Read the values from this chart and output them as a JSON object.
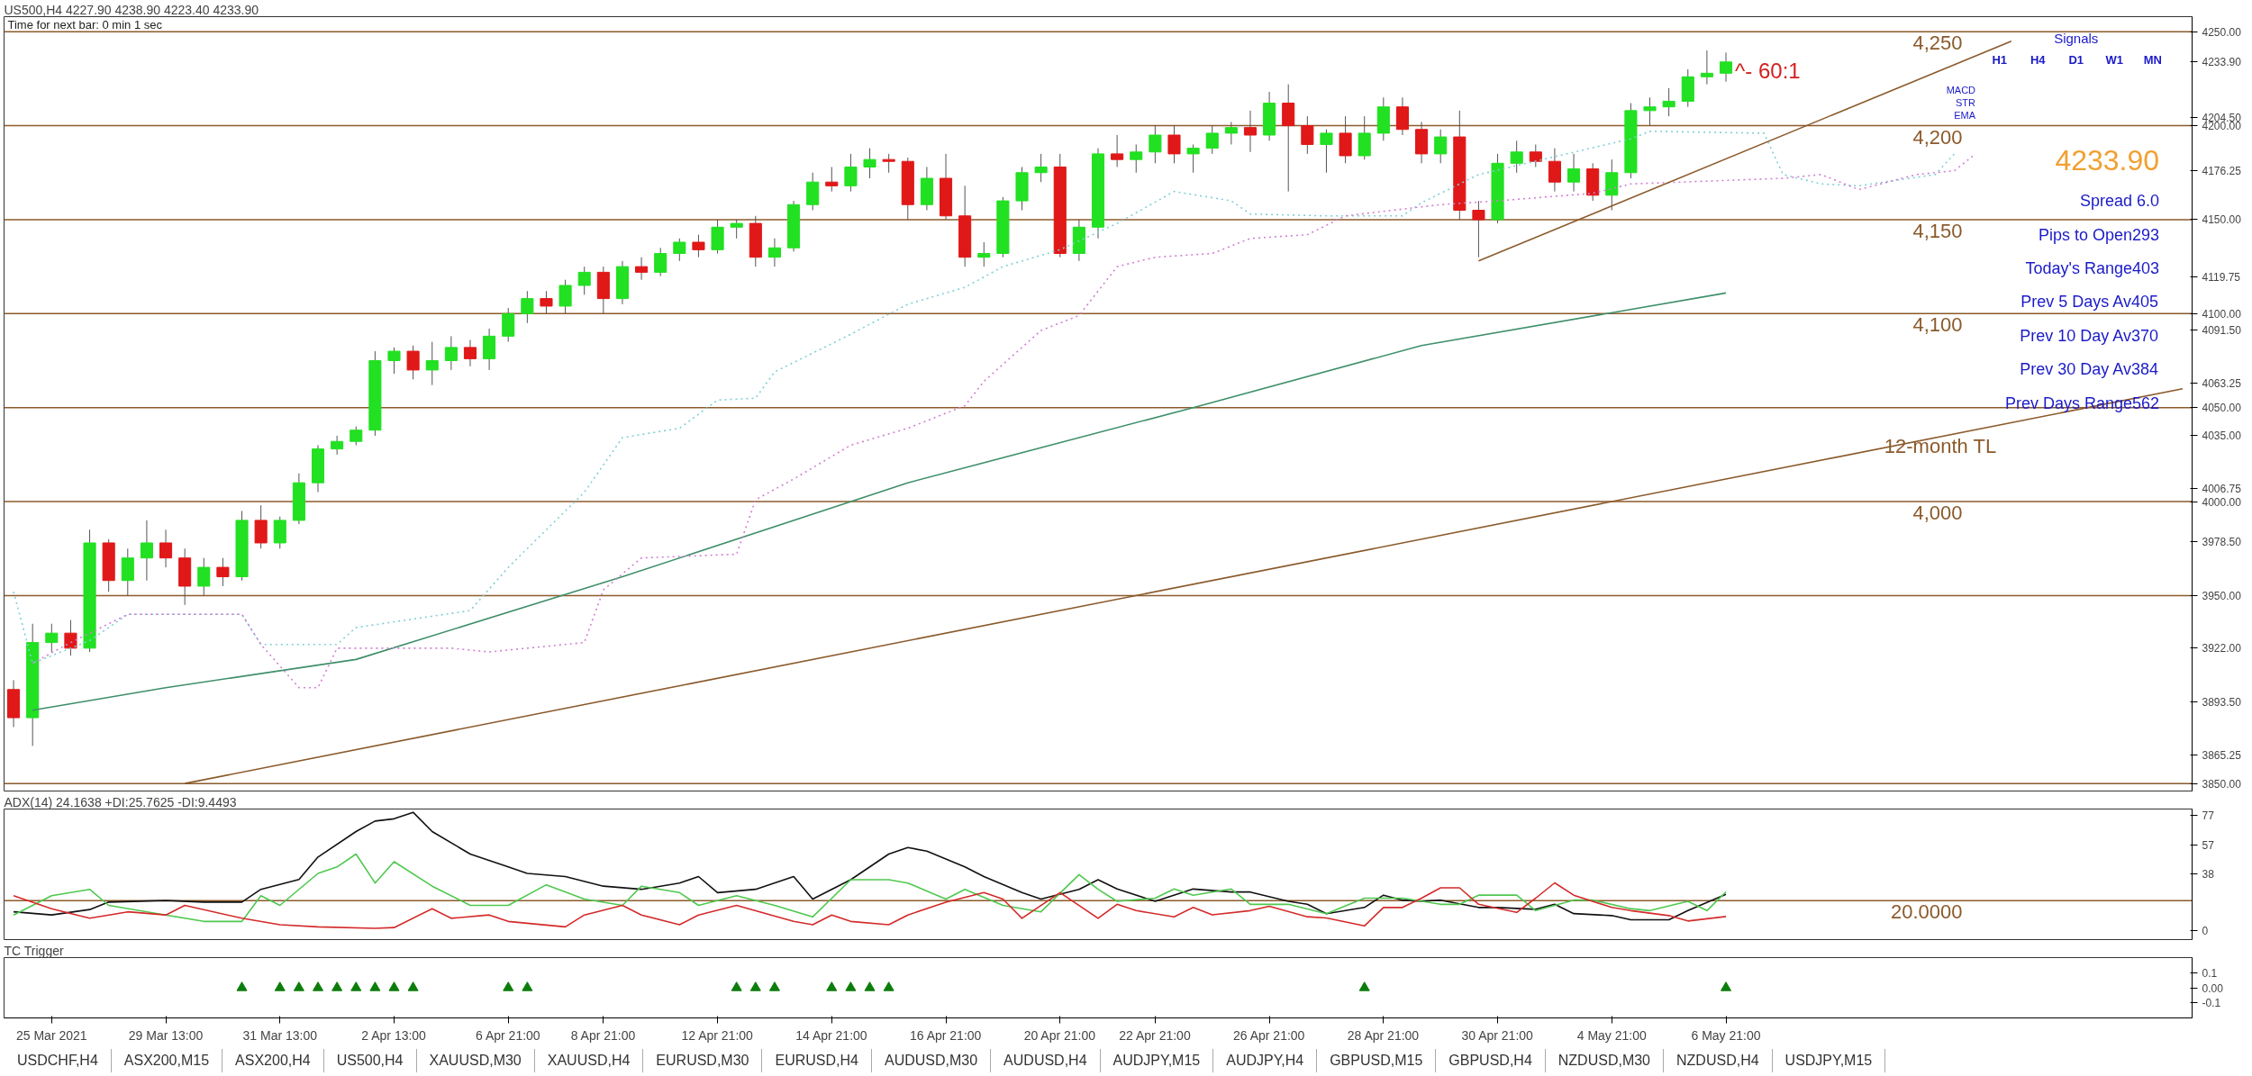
{
  "chart_data": [
    {
      "type": "candlestick",
      "title": "US500,H4  4227.90 4238.90 4223.40 4233.90",
      "subtitle": "Time for next bar: 0 min 1 sec",
      "tick_labels": "y",
      "ylim": [
        3846,
        4258
      ],
      "categories": [
        null,
        null,
        null,
        null,
        null,
        null,
        null,
        null,
        null,
        null,
        null,
        null,
        null,
        null,
        null,
        null,
        null,
        null,
        null,
        null,
        null,
        null,
        null,
        null,
        null,
        null,
        null,
        null,
        null,
        null,
        null,
        null,
        null,
        null,
        null,
        null,
        null,
        null,
        null,
        null,
        null,
        null,
        null,
        null,
        null,
        null,
        null,
        null,
        null,
        null,
        null,
        null,
        null,
        null,
        null,
        null,
        null,
        null,
        null,
        null,
        null,
        null,
        null,
        null,
        null,
        null,
        null,
        null,
        null,
        null,
        null,
        null,
        null,
        null,
        null,
        null,
        null,
        null,
        null,
        null,
        null,
        null,
        null,
        null,
        null,
        null,
        null,
        null,
        null,
        null,
        null,
        null,
        null,
        null,
        null,
        null,
        null,
        null,
        null,
        null,
        null,
        null,
        null,
        null,
        null,
        null,
        null,
        null,
        null,
        null,
        null,
        null,
        null,
        null,
        null
      ],
      "yticks": [
        {
          "value": 4250,
          "label": "4250.00"
        },
        {
          "value": 4233.9,
          "label": "4233.90"
        },
        {
          "value": 4204.5,
          "label": "4204.50"
        },
        {
          "value": 4200,
          "label": "4200.00"
        },
        {
          "value": 4176.25,
          "label": "4176.25"
        },
        {
          "value": 4150,
          "label": "4150.00"
        },
        {
          "value": 4119.75,
          "label": "4119.75"
        },
        {
          "value": 4100,
          "label": "4100.00"
        },
        {
          "value": 4091.5,
          "label": "4091.50"
        },
        {
          "value": 4063.25,
          "label": "4063.25"
        },
        {
          "value": 4050,
          "label": "4050.00"
        },
        {
          "value": 4035,
          "label": "4035.00"
        },
        {
          "value": 4006.75,
          "label": "4006.75"
        },
        {
          "value": 4000,
          "label": "4000.00"
        },
        {
          "value": 3978.5,
          "label": "3978.50"
        },
        {
          "value": 3950,
          "label": "3950.00"
        },
        {
          "value": 3922,
          "label": "3922.00"
        },
        {
          "value": 3893.5,
          "label": "3893.50"
        },
        {
          "value": 3865.25,
          "label": "3865.25"
        },
        {
          "value": 3850,
          "label": "3850.00"
        }
      ],
      "ohlc": [
        [
          3900,
          3905,
          3880,
          3885
        ],
        [
          3885,
          3935,
          3870,
          3925
        ],
        [
          3925,
          3935,
          3920,
          3930
        ],
        [
          3930,
          3937,
          3918,
          3922
        ],
        [
          3922,
          3985,
          3920,
          3978
        ],
        [
          3978,
          3980,
          3952,
          3958
        ],
        [
          3958,
          3975,
          3950,
          3970
        ],
        [
          3970,
          3990,
          3958,
          3978
        ],
        [
          3978,
          3985,
          3965,
          3970
        ],
        [
          3970,
          3975,
          3945,
          3955
        ],
        [
          3955,
          3970,
          3950,
          3965
        ],
        [
          3965,
          3970,
          3955,
          3960
        ],
        [
          3960,
          3995,
          3958,
          3990
        ],
        [
          3990,
          3998,
          3975,
          3978
        ],
        [
          3978,
          3992,
          3975,
          3990
        ],
        [
          3990,
          4015,
          3988,
          4010
        ],
        [
          4010,
          4030,
          4005,
          4028
        ],
        [
          4028,
          4035,
          4025,
          4032
        ],
        [
          4032,
          4040,
          4030,
          4038
        ],
        [
          4038,
          4080,
          4035,
          4075
        ],
        [
          4075,
          4082,
          4068,
          4080
        ],
        [
          4080,
          4083,
          4065,
          4070
        ],
        [
          4070,
          4085,
          4062,
          4075
        ],
        [
          4075,
          4088,
          4070,
          4082
        ],
        [
          4082,
          4086,
          4072,
          4076
        ],
        [
          4076,
          4092,
          4070,
          4088
        ],
        [
          4088,
          4103,
          4085,
          4100
        ],
        [
          4100,
          4112,
          4095,
          4108
        ],
        [
          4108,
          4112,
          4100,
          4104
        ],
        [
          4104,
          4118,
          4100,
          4115
        ],
        [
          4115,
          4125,
          4110,
          4122
        ],
        [
          4122,
          4125,
          4100,
          4108
        ],
        [
          4108,
          4128,
          4105,
          4125
        ],
        [
          4125,
          4130,
          4118,
          4122
        ],
        [
          4122,
          4135,
          4120,
          4132
        ],
        [
          4132,
          4140,
          4128,
          4138
        ],
        [
          4138,
          4142,
          4130,
          4134
        ],
        [
          4134,
          4150,
          4132,
          4146
        ],
        [
          4146,
          4150,
          4140,
          4148
        ],
        [
          4148,
          4152,
          4125,
          4130
        ],
        [
          4130,
          4140,
          4125,
          4135
        ],
        [
          4135,
          4160,
          4133,
          4158
        ],
        [
          4158,
          4175,
          4155,
          4170
        ],
        [
          4170,
          4178,
          4165,
          4168
        ],
        [
          4168,
          4185,
          4165,
          4178
        ],
        [
          4178,
          4188,
          4172,
          4182
        ],
        [
          4182,
          4185,
          4175,
          4181
        ],
        [
          4181,
          4183,
          4150,
          4158
        ],
        [
          4158,
          4178,
          4155,
          4172
        ],
        [
          4172,
          4185,
          4150,
          4152
        ],
        [
          4152,
          4168,
          4125,
          4130
        ],
        [
          4130,
          4138,
          4125,
          4132
        ],
        [
          4132,
          4162,
          4130,
          4160
        ],
        [
          4160,
          4178,
          4155,
          4175
        ],
        [
          4175,
          4185,
          4170,
          4178
        ],
        [
          4178,
          4185,
          4130,
          4132
        ],
        [
          4132,
          4150,
          4128,
          4146
        ],
        [
          4146,
          4188,
          4140,
          4185
        ],
        [
          4185,
          4195,
          4178,
          4182
        ],
        [
          4182,
          4190,
          4175,
          4186
        ],
        [
          4186,
          4200,
          4180,
          4195
        ],
        [
          4195,
          4200,
          4180,
          4185
        ],
        [
          4185,
          4190,
          4175,
          4188
        ],
        [
          4188,
          4200,
          4185,
          4196
        ],
        [
          4196,
          4202,
          4190,
          4199
        ],
        [
          4199,
          4208,
          4186,
          4195
        ],
        [
          4195,
          4218,
          4192,
          4212
        ],
        [
          4212,
          4222,
          4165,
          4200
        ],
        [
          4200,
          4205,
          4185,
          4190
        ],
        [
          4190,
          4198,
          4175,
          4196
        ],
        [
          4196,
          4205,
          4180,
          4184
        ],
        [
          4184,
          4205,
          4182,
          4196
        ],
        [
          4196,
          4215,
          4192,
          4210
        ],
        [
          4210,
          4215,
          4195,
          4198
        ],
        [
          4198,
          4202,
          4180,
          4185
        ],
        [
          4185,
          4198,
          4180,
          4194
        ],
        [
          4194,
          4208,
          4150,
          4155
        ],
        [
          4155,
          4160,
          4130,
          4150
        ],
        [
          4150,
          4185,
          4148,
          4180
        ],
        [
          4180,
          4192,
          4175,
          4186
        ],
        [
          4186,
          4190,
          4178,
          4181
        ],
        [
          4181,
          4188,
          4165,
          4170
        ],
        [
          4170,
          4185,
          4165,
          4177
        ],
        [
          4177,
          4180,
          4160,
          4163
        ],
        [
          4163,
          4182,
          4155,
          4175
        ],
        [
          4175,
          4212,
          4172,
          4208
        ],
        [
          4208,
          4215,
          4200,
          4210
        ],
        [
          4210,
          4220,
          4205,
          4213
        ],
        [
          4213,
          4230,
          4210,
          4226
        ],
        [
          4226,
          4240,
          4222,
          4227.9
        ],
        [
          4227.9,
          4238.9,
          4223.4,
          4233.9
        ],
        null,
        null,
        null,
        null,
        null,
        null,
        null,
        null,
        null,
        null,
        null,
        null,
        null,
        null,
        null,
        null,
        null,
        null,
        null,
        null,
        null,
        null,
        null,
        null
      ],
      "series": [
        {
          "type": "line",
          "color": "#3f8f6a",
          "values": [
            null,
            3889,
            null,
            null,
            null,
            null,
            null,
            null,
            3901,
            null,
            null,
            null,
            null,
            null,
            null,
            null,
            null,
            null,
            3916,
            null,
            null,
            null,
            null,
            null,
            null,
            null,
            null,
            null,
            null,
            null,
            null,
            null,
            3960,
            null,
            null,
            null,
            null,
            null,
            null,
            null,
            null,
            null,
            null,
            null,
            null,
            null,
            null,
            4010,
            null,
            null,
            null,
            null,
            null,
            null,
            null,
            null,
            null,
            null,
            null,
            null,
            null,
            null,
            4050,
            null,
            null,
            null,
            null,
            null,
            null,
            null,
            null,
            null,
            null,
            null,
            4083,
            null,
            null,
            null,
            null,
            null,
            null,
            null,
            null,
            null,
            null,
            null,
            null,
            null,
            null,
            null,
            4111,
            null,
            null,
            null,
            null,
            null,
            null,
            null,
            null,
            null,
            null,
            null,
            null,
            null,
            null,
            null,
            null,
            null,
            null,
            null,
            null,
            null,
            null,
            null,
            null
          ]
        },
        {
          "type": "line",
          "color": "#7fcfd6",
          "line_style": "dotted",
          "values": [
            3952,
            3914,
            null,
            null,
            3926,
            null,
            3940,
            null,
            null,
            null,
            null,
            null,
            3940,
            3924,
            null,
            null,
            null,
            3924,
            3933,
            null,
            null,
            null,
            null,
            null,
            3942,
            null,
            3965,
            null,
            null,
            null,
            4005,
            null,
            4034,
            null,
            null,
            4039,
            null,
            4054,
            null,
            4055,
            4069,
            null,
            null,
            null,
            4089,
            null,
            null,
            4105,
            null,
            null,
            4114,
            null,
            4125,
            null,
            null,
            4134,
            null,
            null,
            4148,
            null,
            null,
            4165,
            null,
            null,
            4160,
            4153,
            null,
            null,
            null,
            4152,
            null,
            null,
            null,
            4152,
            4159,
            null,
            null,
            4174,
            null,
            null,
            null,
            null,
            null,
            null,
            null,
            4193,
            4197,
            null,
            null,
            null,
            null,
            null,
            4196,
            4174,
            null,
            4169,
            null,
            4168,
            null,
            null,
            null,
            4174,
            4185,
            null,
            null,
            null,
            null,
            null,
            null,
            null,
            null,
            null,
            null,
            null,
            null
          ]
        },
        {
          "type": "line",
          "color": "#d27fd2",
          "line_style": "dotted",
          "values": [
            null,
            3914,
            null,
            3925,
            null,
            null,
            3940,
            null,
            null,
            null,
            null,
            null,
            3940,
            3924,
            null,
            3901,
            3901,
            3922,
            null,
            null,
            null,
            null,
            null,
            3922,
            null,
            3920,
            null,
            null,
            null,
            null,
            3925,
            3953,
            null,
            3970,
            null,
            null,
            null,
            null,
            3972,
            4001,
            null,
            4012,
            null,
            null,
            4030,
            null,
            null,
            4039,
            null,
            null,
            4051,
            4064,
            null,
            null,
            4091,
            null,
            4099,
            null,
            4125,
            null,
            4130,
            null,
            null,
            4132,
            null,
            4140,
            null,
            null,
            4142,
            null,
            4152,
            null,
            null,
            null,
            null,
            4158,
            null,
            null,
            4160,
            null,
            null,
            null,
            null,
            4164,
            null,
            4169,
            null,
            null,
            null,
            null,
            null,
            null,
            null,
            4172,
            null,
            4174,
            null,
            4166,
            null,
            null,
            4174,
            null,
            4176,
            4184,
            null,
            null,
            null,
            null,
            null,
            null,
            null,
            null,
            null,
            null,
            null
          ]
        },
        {
          "type": "line",
          "color": "#8b5a2b",
          "values": [
            null,
            null,
            null,
            null,
            null,
            null,
            null,
            null,
            null,
            3850,
            null,
            null,
            null,
            null,
            null,
            null,
            null,
            null,
            null,
            null,
            null,
            null,
            null,
            null,
            null,
            null,
            null,
            null,
            null,
            null,
            null,
            null,
            null,
            null,
            null,
            null,
            null,
            null,
            null,
            null,
            null,
            null,
            null,
            null,
            null,
            null,
            null,
            null,
            null,
            null,
            null,
            null,
            null,
            null,
            null,
            null,
            null,
            null,
            null,
            null,
            null,
            null,
            null,
            null,
            null,
            null,
            null,
            null,
            null,
            null,
            null,
            null,
            null,
            null,
            null,
            null,
            null,
            null,
            null,
            null,
            null,
            null,
            null,
            null,
            null,
            null,
            null,
            null,
            null,
            null,
            null,
            null,
            null,
            null,
            null,
            null,
            null,
            null,
            null,
            null,
            null,
            null,
            null,
            null,
            null,
            null,
            null,
            null,
            null,
            null,
            null,
            null,
            null,
            null,
            4060
          ]
        },
        {
          "type": "line",
          "color": "#8b5a2b",
          "values": [
            null,
            null,
            null,
            null,
            null,
            null,
            null,
            null,
            null,
            null,
            null,
            null,
            null,
            null,
            null,
            null,
            null,
            null,
            null,
            null,
            null,
            null,
            null,
            null,
            null,
            null,
            null,
            null,
            null,
            null,
            null,
            null,
            null,
            null,
            null,
            null,
            null,
            null,
            null,
            null,
            null,
            null,
            null,
            null,
            null,
            null,
            null,
            null,
            null,
            null,
            null,
            null,
            null,
            null,
            null,
            null,
            null,
            null,
            null,
            null,
            null,
            null,
            null,
            null,
            null,
            null,
            null,
            null,
            null,
            null,
            null,
            null,
            null,
            null,
            null,
            null,
            null,
            4128,
            null,
            null,
            null,
            null,
            null,
            null,
            null,
            null,
            null,
            null,
            null,
            null,
            null,
            null,
            null,
            null,
            null,
            null,
            null,
            null,
            null,
            null,
            null,
            null,
            null,
            null,
            null,
            4245,
            null,
            null,
            null,
            null,
            null,
            null,
            null,
            null,
            null
          ]
        }
      ],
      "ref_lines": [
        {
          "axis": "y",
          "value": 4250,
          "label": "4,250",
          "color": "#8b5a2b"
        },
        {
          "axis": "y",
          "value": 4200,
          "label": "4,200",
          "color": "#8b5a2b"
        },
        {
          "axis": "y",
          "value": 4150,
          "label": "4,150",
          "color": "#8b5a2b"
        },
        {
          "axis": "y",
          "value": 4100,
          "label": "4,100",
          "color": "#8b5a2b"
        },
        {
          "axis": "y",
          "value": 4050,
          "label": null,
          "color": "#8b5a2b"
        },
        {
          "axis": "y",
          "value": 4000,
          "label": "4,000",
          "color": "#8b5a2b"
        },
        {
          "axis": "y",
          "value": 3950,
          "label": null,
          "color": "#8b5a2b"
        },
        {
          "axis": "y",
          "value": 3850,
          "label": null,
          "color": "#8b5a2b"
        }
      ],
      "annotations": [
        "^- 60:1",
        "4233.90",
        "Spread 6.0",
        "Pips to Open293",
        "Today's Range403",
        "Prev 5 Days Av405",
        "Prev 10 Day Av370",
        "Prev 30 Day Av384",
        "Prev Days Range562",
        "Signals",
        "H1",
        "H4",
        "D1",
        "W1",
        "MN",
        "MACD",
        "STR",
        "EMA",
        "12-month TL"
      ]
    },
    {
      "type": "line",
      "title": "ADX(14) 24.1638 +DI:25.7625 -DI:9.4493",
      "tick_labels": "y",
      "ylim": [
        -6,
        81
      ],
      "yticks": [
        0,
        38,
        57,
        77
      ],
      "categories": [
        null,
        null,
        null,
        null,
        null,
        null,
        null,
        null,
        null,
        null,
        null,
        null,
        null,
        null,
        null,
        null,
        null,
        null,
        null,
        null,
        null,
        null,
        null,
        null,
        null,
        null,
        null,
        null,
        null,
        null,
        null,
        null,
        null,
        null,
        null,
        null,
        null,
        null,
        null,
        null,
        null,
        null,
        null,
        null,
        null,
        null,
        null,
        null,
        null,
        null,
        null,
        null,
        null,
        null,
        null,
        null,
        null,
        null,
        null,
        null,
        null,
        null,
        null,
        null,
        null,
        null,
        null,
        null,
        null,
        null,
        null,
        null,
        null,
        null,
        null,
        null,
        null,
        null,
        null,
        null,
        null,
        null,
        null,
        null,
        null,
        null,
        null,
        null,
        null,
        null,
        null,
        null,
        null,
        null,
        null,
        null,
        null,
        null,
        null,
        null,
        null,
        null,
        null,
        null,
        null,
        null,
        null,
        null,
        null,
        null,
        null,
        null,
        null,
        null,
        null
      ],
      "ref_lines": [
        {
          "axis": "y",
          "value": 20,
          "label": "20.0000",
          "color": "#8b5a2b"
        }
      ],
      "series": [
        {
          "color": "#111111",
          "values": [
            12.5,
            null,
            10.4,
            null,
            14,
            19,
            null,
            null,
            20,
            null,
            19,
            null,
            19,
            27.5,
            null,
            34,
            49,
            null,
            66,
            73,
            74.5,
            78.8,
            66,
            null,
            51,
            null,
            42.4,
            38.1,
            null,
            36,
            null,
            29.6,
            null,
            27.5,
            null,
            31.7,
            36,
            25.3,
            null,
            27.5,
            null,
            36,
            21,
            null,
            33.9,
            null,
            51,
            55.3,
            53,
            null,
            42.4,
            36,
            null,
            25.3,
            21,
            null,
            27.5,
            33.9,
            27.7,
            null,
            19.5,
            null,
            27.7,
            null,
            25.7,
            25.7,
            null,
            19.5,
            17.5,
            11.3,
            null,
            15.4,
            23.6,
            20.3,
            19.5,
            20.3,
            null,
            15.4,
            15.4,
            null,
            14.2,
            17.5,
            11.3,
            null,
            10,
            7.2,
            null,
            7.2,
            13.3,
            null,
            24.2,
            null,
            null,
            null,
            null,
            null,
            null,
            null,
            null,
            null,
            null,
            null,
            null,
            null,
            null,
            null,
            null,
            null,
            null,
            null,
            null,
            null,
            null,
            null,
            null
          ]
        },
        {
          "color": "#4fc84f",
          "values": [
            10.4,
            null,
            23.2,
            null,
            27.5,
            16.8,
            null,
            null,
            10.4,
            null,
            6.1,
            null,
            6.1,
            23.2,
            16.8,
            null,
            38.1,
            42.4,
            51,
            31.7,
            45.9,
            null,
            29.6,
            null,
            16.8,
            null,
            16.8,
            null,
            30.5,
            null,
            21,
            null,
            16.8,
            29.6,
            null,
            25.3,
            16.8,
            null,
            23.2,
            null,
            16.8,
            null,
            9.1,
            null,
            33.9,
            null,
            33.9,
            31.7,
            null,
            21,
            27.5,
            null,
            16.8,
            null,
            12.5,
            null,
            37.3,
            27.5,
            19.5,
            null,
            21.6,
            27.7,
            23.6,
            null,
            27.7,
            17.5,
            null,
            17.5,
            null,
            11.3,
            null,
            21.6,
            null,
            21.6,
            null,
            17.5,
            17.5,
            23.6,
            null,
            23.6,
            13.3,
            null,
            20.3,
            20.3,
            null,
            14.6,
            13.3,
            null,
            19.5,
            13.3,
            25.8,
            null,
            null,
            null,
            null,
            null,
            null,
            null,
            null,
            null,
            null,
            null,
            null,
            null,
            null,
            null,
            null,
            null,
            null,
            null,
            null,
            null,
            null,
            null,
            null
          ]
        },
        {
          "color": "#d42a2a",
          "values": [
            23.2,
            null,
            14.6,
            null,
            8.2,
            null,
            12.5,
            null,
            10.4,
            16.8,
            null,
            null,
            8.2,
            null,
            3.9,
            null,
            2.5,
            null,
            null,
            1.5,
            2,
            null,
            14.6,
            8.2,
            null,
            10.4,
            6.1,
            null,
            null,
            2.5,
            10.4,
            null,
            16.8,
            10.4,
            null,
            3.9,
            10.4,
            null,
            16.8,
            null,
            null,
            6.1,
            3.9,
            10.4,
            6.1,
            null,
            3.9,
            10.4,
            null,
            18.9,
            null,
            25.3,
            21,
            8.2,
            null,
            25.3,
            null,
            8.2,
            17.5,
            13.3,
            null,
            9.2,
            15.4,
            10.5,
            null,
            13.3,
            16.2,
            null,
            9.2,
            8.4,
            null,
            3.1,
            15.4,
            15.4,
            21.6,
            28.5,
            28.5,
            17.5,
            null,
            12.1,
            21.6,
            31.8,
            23.6,
            null,
            15.4,
            13.3,
            null,
            10,
            6.4,
            null,
            9.4,
            null,
            null,
            null,
            null,
            null,
            null,
            null,
            null,
            null,
            null,
            null,
            null,
            null,
            null,
            null,
            null,
            null,
            null,
            null,
            null,
            null,
            null,
            null,
            null
          ]
        }
      ]
    },
    {
      "type": "scatter",
      "title": "TC Trigger",
      "marker": "triangle",
      "ylim": [
        -0.2,
        0.2
      ],
      "yticks": [
        0.1,
        {
          "value": 0,
          "label": "0.00"
        },
        -0.1
      ],
      "categories": [
        null,
        null,
        "25 Mar 2021",
        null,
        null,
        null,
        null,
        null,
        "29 Mar 13:00",
        null,
        null,
        null,
        null,
        null,
        "31 Mar 13:00",
        null,
        null,
        null,
        null,
        null,
        "2 Apr 13:00",
        null,
        null,
        null,
        null,
        null,
        "6 Apr 21:00",
        null,
        null,
        null,
        null,
        "8 Apr 21:00",
        null,
        null,
        null,
        null,
        null,
        "12 Apr 21:00",
        null,
        null,
        null,
        null,
        null,
        "14 Apr 21:00",
        null,
        null,
        null,
        null,
        null,
        "16 Apr 21:00",
        null,
        null,
        null,
        null,
        null,
        "20 Apr 21:00",
        null,
        null,
        null,
        null,
        "22 Apr 21:00",
        null,
        null,
        null,
        null,
        null,
        "26 Apr 21:00",
        null,
        null,
        null,
        null,
        null,
        "28 Apr 21:00",
        null,
        null,
        null,
        null,
        null,
        "30 Apr 21:00",
        null,
        null,
        null,
        null,
        null,
        "4 May 21:00",
        null,
        null,
        null,
        null,
        null,
        "6 May 21:00",
        null,
        null,
        null,
        null,
        null,
        null,
        null,
        null,
        null,
        null,
        null,
        null,
        null,
        null,
        null,
        null,
        null,
        null,
        null,
        null,
        null,
        null,
        null,
        null
      ],
      "series": [
        {
          "color": "#0a7d0a",
          "values": [
            null,
            null,
            null,
            null,
            null,
            null,
            null,
            null,
            null,
            null,
            null,
            null,
            0,
            null,
            0,
            0,
            0,
            0,
            0,
            0,
            0,
            0,
            null,
            null,
            null,
            null,
            0,
            0,
            null,
            null,
            null,
            null,
            null,
            null,
            null,
            null,
            null,
            null,
            0,
            0,
            0,
            null,
            null,
            0,
            0,
            0,
            0,
            null,
            null,
            null,
            null,
            null,
            null,
            null,
            null,
            null,
            null,
            null,
            null,
            null,
            null,
            null,
            null,
            null,
            null,
            null,
            null,
            null,
            null,
            null,
            null,
            0,
            null,
            null,
            null,
            null,
            null,
            null,
            null,
            null,
            null,
            null,
            null,
            null,
            null,
            null,
            null,
            null,
            null,
            null,
            0,
            null,
            null,
            null,
            null,
            null,
            null,
            null,
            null,
            null,
            null,
            null,
            null,
            null,
            null,
            null,
            null,
            null,
            null,
            null,
            null,
            null,
            null,
            null,
            null
          ]
        }
      ],
      "annotations": [
        "USDCHF,H4",
        "ASX200,M15",
        "ASX200,H4",
        "US500,H4",
        "XAUUSD,M30",
        "XAUUSD,H4",
        "EURUSD,M30",
        "EURUSD,H4",
        "AUDUSD,M30",
        "AUDUSD,H4",
        "AUDJPY,M15",
        "AUDJPY,H4",
        "GBPUSD,M15",
        "GBPUSD,H4",
        "NZDUSD,M30",
        "NZDUSD,H4",
        "USDJPY,M15"
      ]
    }
  ]
}
